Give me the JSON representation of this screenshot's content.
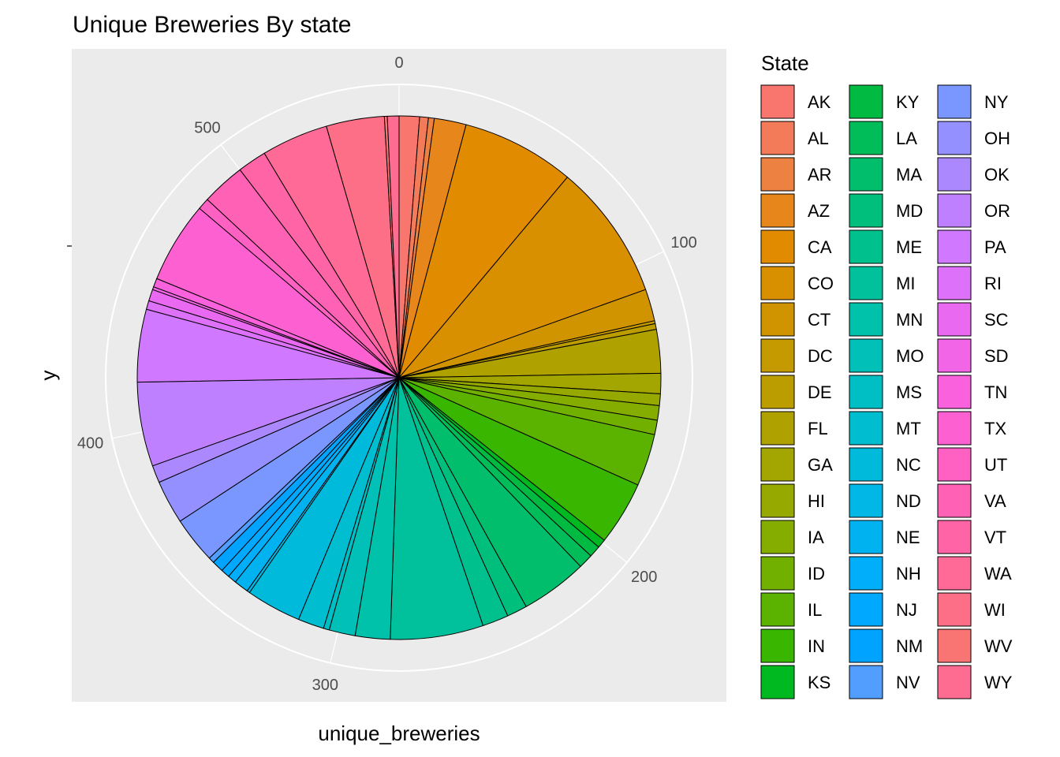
{
  "chart_data": {
    "type": "pie",
    "title": "Unique Breweries By state",
    "xlabel": "unique_breweries",
    "ylabel": "y",
    "theta_axis": {
      "range": [
        0,
        558
      ],
      "ticks": [
        0,
        100,
        200,
        300,
        400,
        500
      ]
    },
    "legend": {
      "title": "State",
      "placement": "right"
    },
    "categories": [
      "AK",
      "AL",
      "AR",
      "AZ",
      "CA",
      "CO",
      "CT",
      "DC",
      "DE",
      "FL",
      "GA",
      "HI",
      "IA",
      "ID",
      "IL",
      "IN",
      "KS",
      "KY",
      "LA",
      "MA",
      "MD",
      "ME",
      "MI",
      "MN",
      "MO",
      "MS",
      "MT",
      "NC",
      "ND",
      "NE",
      "NH",
      "NJ",
      "NM",
      "NV",
      "NY",
      "OH",
      "OK",
      "OR",
      "PA",
      "RI",
      "SC",
      "SD",
      "TN",
      "TX",
      "UT",
      "VA",
      "VT",
      "WA",
      "WI",
      "WV",
      "WY"
    ],
    "values": [
      7,
      3,
      2,
      11,
      39,
      47,
      11,
      1,
      2,
      15,
      7,
      4,
      5,
      5,
      18,
      22,
      3,
      4,
      5,
      23,
      7,
      9,
      32,
      12,
      9,
      2,
      9,
      19,
      1,
      5,
      3,
      3,
      4,
      2,
      16,
      15,
      6,
      29,
      25,
      3,
      4,
      1,
      3,
      28,
      4,
      15,
      10,
      23,
      20,
      1,
      4
    ],
    "colors": [
      "#F8766D",
      "#F37B59",
      "#ED8141",
      "#E7861B",
      "#E08B00",
      "#D89000",
      "#CF9400",
      "#C59900",
      "#BB9D00",
      "#AFA100",
      "#A3A500",
      "#95A900",
      "#85AD00",
      "#72B000",
      "#5BB300",
      "#39B600",
      "#00B81F",
      "#00BA42",
      "#00BC59",
      "#00BE6C",
      "#00BF7D",
      "#00C08D",
      "#00C19C",
      "#00C1AA",
      "#00C0B8",
      "#00BFC4",
      "#00BDD0",
      "#00BADC",
      "#00B7E6",
      "#00B3F0",
      "#00AEF9",
      "#00A9FF",
      "#00A3FF",
      "#529EFF",
      "#7997FF",
      "#9590FF",
      "#AC88FF",
      "#BF80FF",
      "#D078FF",
      "#DE71F9",
      "#E96AF0",
      "#F265E7",
      "#F962DC",
      "#FD61D1",
      "#FF61C3",
      "#FF62B5",
      "#FF65A6",
      "#FF6A97",
      "#FD6F86",
      "#F87574",
      "#FF6C91"
    ]
  }
}
